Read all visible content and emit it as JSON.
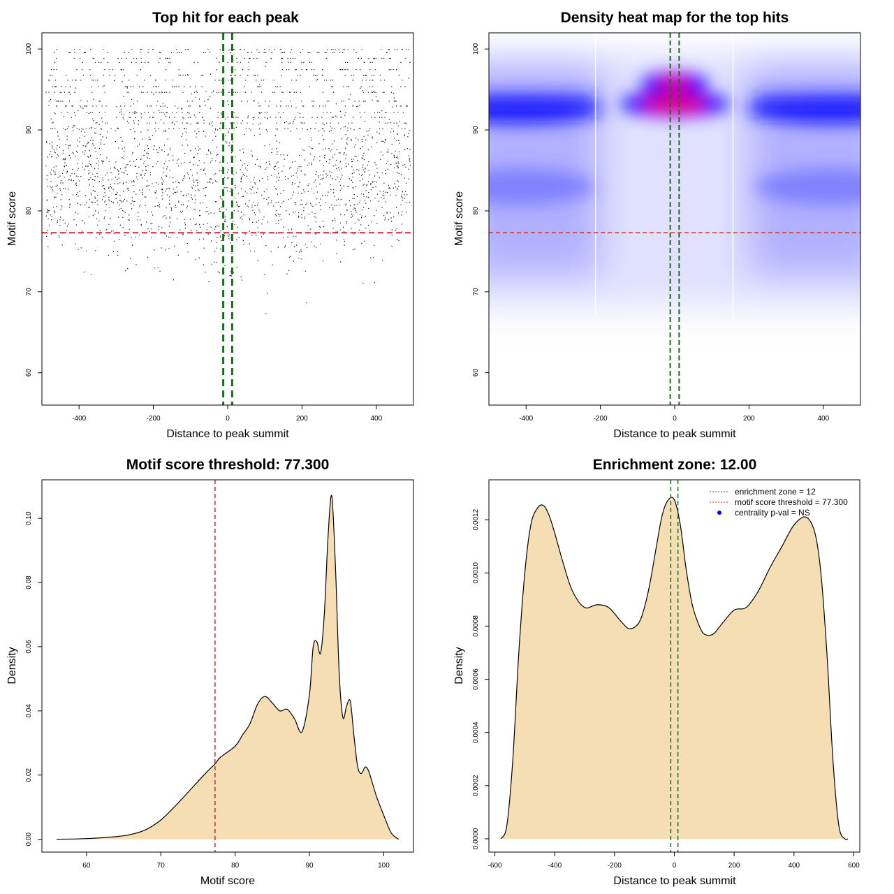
{
  "chart_data": [
    {
      "id": "scatter",
      "type": "scatter",
      "title": "Top hit for each peak",
      "xlabel": "Distance to peak summit",
      "ylabel": "Motif score",
      "xlim": [
        -500,
        500
      ],
      "ylim": [
        56,
        102
      ],
      "xticks": [
        -400,
        -200,
        0,
        200,
        400
      ],
      "yticks": [
        60,
        70,
        80,
        90,
        100
      ],
      "n_points": 22000,
      "score_threshold": 77.3,
      "enrichment_zone": [
        -12,
        12
      ],
      "colors": {
        "points": "#000000",
        "threshold": "#d62728",
        "zone": "#1a6b1a"
      }
    },
    {
      "id": "heatmap",
      "type": "heatmap",
      "title": "Density heat map for the top hits",
      "xlabel": "Distance to peak summit",
      "ylabel": "Motif score",
      "xlim": [
        -500,
        500
      ],
      "ylim": [
        56,
        102
      ],
      "xticks": [
        -400,
        -200,
        0,
        200,
        400
      ],
      "yticks": [
        60,
        70,
        80,
        90,
        100
      ],
      "score_threshold": 77.3,
      "enrichment_zone": [
        -12,
        12
      ],
      "hotspots": [
        {
          "x": 0,
          "y": 95.7,
          "intensity": "high"
        },
        {
          "x": 0,
          "y": 93.2,
          "intensity": "high"
        },
        {
          "x": -420,
          "y": 92.5,
          "intensity": "medium"
        },
        {
          "x": 420,
          "y": 92.5,
          "intensity": "medium"
        },
        {
          "x": -420,
          "y": 83,
          "intensity": "low"
        },
        {
          "x": 420,
          "y": 83,
          "intensity": "low"
        }
      ],
      "colors": {
        "low": "#ffffff",
        "mid": "#0000ff",
        "high": "#ff0000",
        "threshold": "#d62728",
        "zone": "#1a6b1a"
      }
    },
    {
      "id": "score_density",
      "type": "area",
      "title": "Motif score threshold: 77.300",
      "xlabel": "Motif score",
      "ylabel": "Density",
      "xlim": [
        54,
        104
      ],
      "ylim": [
        -0.004,
        0.112
      ],
      "xticks": [
        60,
        70,
        80,
        90,
        100
      ],
      "yticks": [
        0.0,
        0.02,
        0.04,
        0.06,
        0.08,
        0.1
      ],
      "ytick_labels": [
        "0.00",
        "0.02",
        "0.04",
        "0.06",
        "0.08",
        "0.10"
      ],
      "x": [
        56,
        60,
        64,
        66,
        68,
        70,
        72,
        74,
        76,
        77.3,
        78,
        80,
        81,
        82,
        83,
        84,
        85,
        86,
        87,
        88,
        89,
        90,
        90.5,
        91,
        91.5,
        92,
        92.5,
        93,
        93.5,
        94,
        94.5,
        95,
        95.5,
        96,
        96.5,
        97,
        97.5,
        98,
        99,
        100,
        101,
        102
      ],
      "y": [
        0.0,
        0.0002,
        0.0008,
        0.0015,
        0.003,
        0.006,
        0.0105,
        0.0155,
        0.0205,
        0.0235,
        0.0255,
        0.029,
        0.0325,
        0.036,
        0.042,
        0.0445,
        0.0425,
        0.04,
        0.0405,
        0.0375,
        0.0335,
        0.045,
        0.06,
        0.0615,
        0.058,
        0.07,
        0.094,
        0.107,
        0.085,
        0.052,
        0.038,
        0.0415,
        0.043,
        0.032,
        0.0225,
        0.0205,
        0.0225,
        0.021,
        0.0135,
        0.0075,
        0.002,
        0.0
      ],
      "vline": 77.3,
      "colors": {
        "fill": "#f5deb3",
        "line": "#000000",
        "vline": "#d62728"
      }
    },
    {
      "id": "position_density",
      "type": "area",
      "title": "Enrichment zone: 12.00",
      "xlabel": "Distance to peak summit",
      "ylabel": "Density",
      "xlim": [
        -620,
        620
      ],
      "ylim": [
        -5e-05,
        0.00135
      ],
      "xticks": [
        -600,
        -400,
        -200,
        0,
        200,
        400,
        600
      ],
      "yticks": [
        0.0,
        0.0002,
        0.0004,
        0.0006,
        0.0008,
        0.001,
        0.0012
      ],
      "ytick_labels": [
        "0.0000",
        "0.0002",
        "0.0004",
        "0.0006",
        "0.0008",
        "0.0010",
        "0.0012"
      ],
      "x": [
        -580,
        -560,
        -540,
        -520,
        -500,
        -480,
        -460,
        -440,
        -420,
        -400,
        -370,
        -340,
        -300,
        -260,
        -220,
        -180,
        -150,
        -120,
        -100,
        -80,
        -60,
        -40,
        -20,
        0,
        20,
        40,
        60,
        80,
        100,
        130,
        160,
        200,
        240,
        280,
        320,
        360,
        400,
        440,
        470,
        490,
        510,
        530,
        550,
        570,
        580
      ],
      "y": [
        0.0,
        5e-05,
        0.0003,
        0.0007,
        0.001,
        0.00118,
        0.00124,
        0.001255,
        0.00122,
        0.00115,
        0.00103,
        0.00093,
        0.00087,
        0.00088,
        0.00087,
        0.00082,
        0.00079,
        0.00081,
        0.00087,
        0.00097,
        0.0011,
        0.00122,
        0.001275,
        0.001275,
        0.00118,
        0.00101,
        0.00088,
        0.00081,
        0.00077,
        0.00077,
        0.00081,
        0.00086,
        0.00087,
        0.00093,
        0.00102,
        0.0011,
        0.00118,
        0.00121,
        0.00115,
        0.001,
        0.0007,
        0.0003,
        5e-05,
        0.0,
        0.0
      ],
      "vlines": [
        -12,
        12
      ],
      "legend": {
        "position": "top-right",
        "entries": [
          {
            "label": "enrichment zone = 12",
            "color": "#1a6b1a",
            "style": "dotted"
          },
          {
            "label": "motif score threshold = 77.300",
            "color": "#d62728",
            "style": "dotted"
          },
          {
            "label": "centrality p-val = NS",
            "color": "#0000ff",
            "style": "point"
          }
        ]
      },
      "colors": {
        "fill": "#f5deb3",
        "line": "#000000",
        "vline": "#1a6b1a"
      }
    }
  ]
}
